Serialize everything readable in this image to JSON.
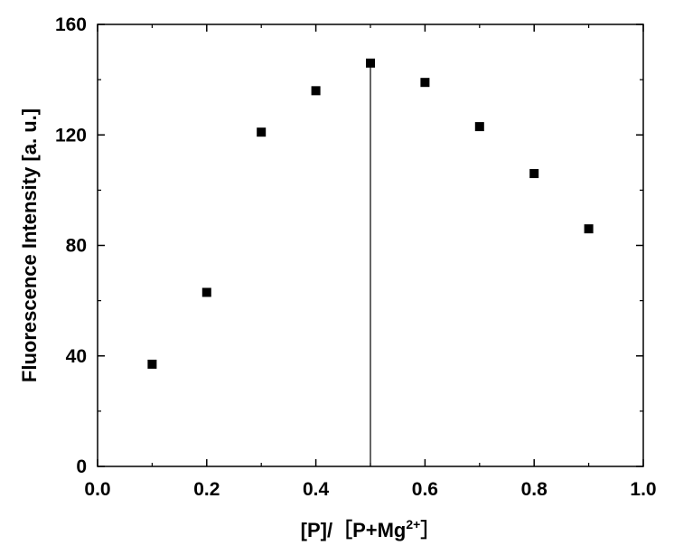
{
  "chart_data": {
    "type": "scatter",
    "title": "",
    "xlabel": "[P]/［P+Mg2+］",
    "xlabel_parts": {
      "prefix": "[P]/［P+Mg",
      "superscript": "2+",
      "suffix": "］"
    },
    "ylabel": "Fluorescence Intensity [a. u.]",
    "xlim": [
      0.0,
      1.0
    ],
    "ylim": [
      0,
      160
    ],
    "xticks": [
      "0.0",
      "0.2",
      "0.4",
      "0.6",
      "0.8",
      "1.0"
    ],
    "yticks": [
      "0",
      "40",
      "80",
      "120",
      "160"
    ],
    "series": [
      {
        "marker": "square",
        "color": "#000000",
        "x": [
          0.1,
          0.2,
          0.3,
          0.4,
          0.5,
          0.6,
          0.7,
          0.8,
          0.9
        ],
        "y": [
          37,
          63,
          121,
          136,
          146,
          139,
          123,
          106,
          86
        ]
      }
    ],
    "vertical_line_x": 0.5,
    "grid": false,
    "legend": "none"
  }
}
